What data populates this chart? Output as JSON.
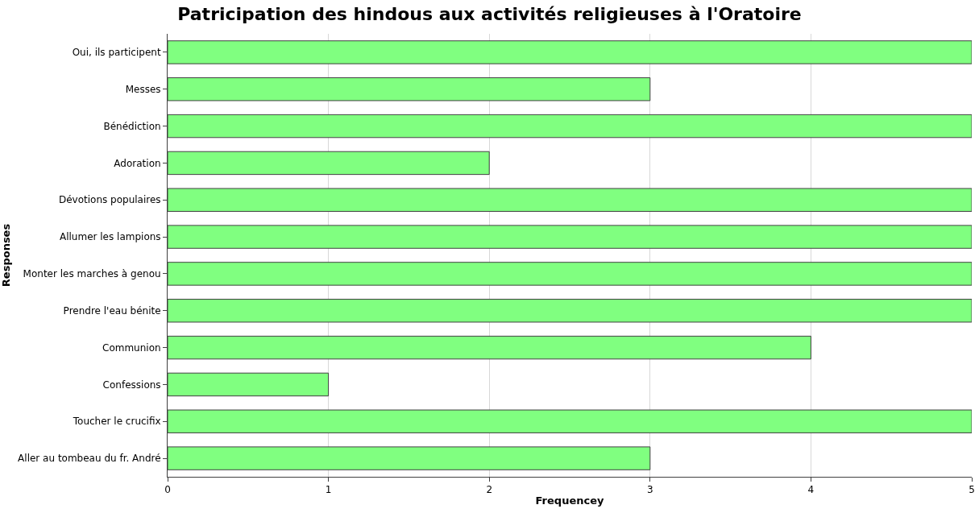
{
  "chart_data": {
    "type": "bar",
    "orientation": "horizontal",
    "title": "Patricipation des hindous aux activités religieuses à l'Oratoire",
    "xlabel": "Frequencey",
    "ylabel": "Responses",
    "categories": [
      "Oui, ils participent",
      "Messes",
      "Bénédiction",
      "Adoration",
      "Dévotions populaires",
      "Allumer les lampions",
      "Monter les marches à genou",
      "Prendre l'eau bénite",
      "Communion",
      "Confessions",
      "Toucher le crucifix",
      "Aller au tombeau du fr. André"
    ],
    "values": [
      5,
      3,
      5,
      2,
      5,
      5,
      5,
      5,
      4,
      1,
      5,
      3
    ],
    "color": "#80ff80",
    "xlim": [
      0,
      5
    ],
    "xticks": [
      0,
      1,
      2,
      3,
      4,
      5
    ],
    "grid": "x"
  }
}
